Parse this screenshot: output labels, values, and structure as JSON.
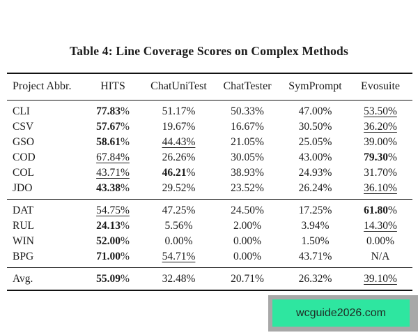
{
  "title": "Table 4: Line Coverage Scores on Complex Methods",
  "table": {
    "headers": [
      "Project Abbr.",
      "HITS",
      "ChatUniTest",
      "ChatTester",
      "SymPrompt",
      "Evosuite"
    ],
    "groups": [
      {
        "rows": [
          {
            "label": "CLI",
            "cells": [
              {
                "v": "77.83%",
                "b": true
              },
              {
                "v": "51.17%"
              },
              {
                "v": "50.33%"
              },
              {
                "v": "47.00%"
              },
              {
                "v": "53.50%",
                "u": true
              }
            ]
          },
          {
            "label": "CSV",
            "cells": [
              {
                "v": "57.67%",
                "b": true
              },
              {
                "v": "19.67%"
              },
              {
                "v": "16.67%"
              },
              {
                "v": "30.50%"
              },
              {
                "v": "36.20%",
                "u": true
              }
            ]
          },
          {
            "label": "GSO",
            "cells": [
              {
                "v": "58.61%",
                "b": true
              },
              {
                "v": "44.43%",
                "u": true
              },
              {
                "v": "21.05%"
              },
              {
                "v": "25.05%"
              },
              {
                "v": "39.00%"
              }
            ]
          },
          {
            "label": "COD",
            "cells": [
              {
                "v": "67.84%",
                "u": true
              },
              {
                "v": "26.26%"
              },
              {
                "v": "30.05%"
              },
              {
                "v": "43.00%"
              },
              {
                "v": "79.30%",
                "b": true
              }
            ]
          },
          {
            "label": "COL",
            "cells": [
              {
                "v": "43.71%",
                "u": true
              },
              {
                "v": "46.21%",
                "b": true
              },
              {
                "v": "38.93%"
              },
              {
                "v": "24.93%"
              },
              {
                "v": "31.70%"
              }
            ]
          },
          {
            "label": "JDO",
            "cells": [
              {
                "v": "43.38%",
                "b": true
              },
              {
                "v": "29.52%"
              },
              {
                "v": "23.52%"
              },
              {
                "v": "26.24%"
              },
              {
                "v": "36.10%",
                "u": true
              }
            ]
          }
        ]
      },
      {
        "rows": [
          {
            "label": "DAT",
            "cells": [
              {
                "v": "54.75%",
                "u": true
              },
              {
                "v": "47.25%"
              },
              {
                "v": "24.50%"
              },
              {
                "v": "17.25%"
              },
              {
                "v": "61.80%",
                "b": true
              }
            ]
          },
          {
            "label": "RUL",
            "cells": [
              {
                "v": "24.13%",
                "b": true
              },
              {
                "v": "5.56%"
              },
              {
                "v": "2.00%"
              },
              {
                "v": "3.94%"
              },
              {
                "v": "14.30%",
                "u": true
              }
            ]
          },
          {
            "label": "WIN",
            "cells": [
              {
                "v": "52.00%",
                "b": true
              },
              {
                "v": "0.00%"
              },
              {
                "v": "0.00%"
              },
              {
                "v": "1.50%"
              },
              {
                "v": "0.00%"
              }
            ]
          },
          {
            "label": "BPG",
            "cells": [
              {
                "v": "71.00%",
                "b": true
              },
              {
                "v": "54.71%",
                "u": true
              },
              {
                "v": "0.00%"
              },
              {
                "v": "43.71%"
              },
              {
                "v": "N/A"
              }
            ]
          }
        ]
      },
      {
        "rows": [
          {
            "label": "Avg.",
            "cells": [
              {
                "v": "55.09%",
                "b": true
              },
              {
                "v": "32.48%"
              },
              {
                "v": "20.71%"
              },
              {
                "v": "26.32%"
              },
              {
                "v": "39.10%",
                "u": true
              }
            ]
          }
        ]
      }
    ]
  },
  "watermark": {
    "text": "wcguide2026.com",
    "green": "#2ee6a0",
    "gray": "#a8a8a8"
  }
}
